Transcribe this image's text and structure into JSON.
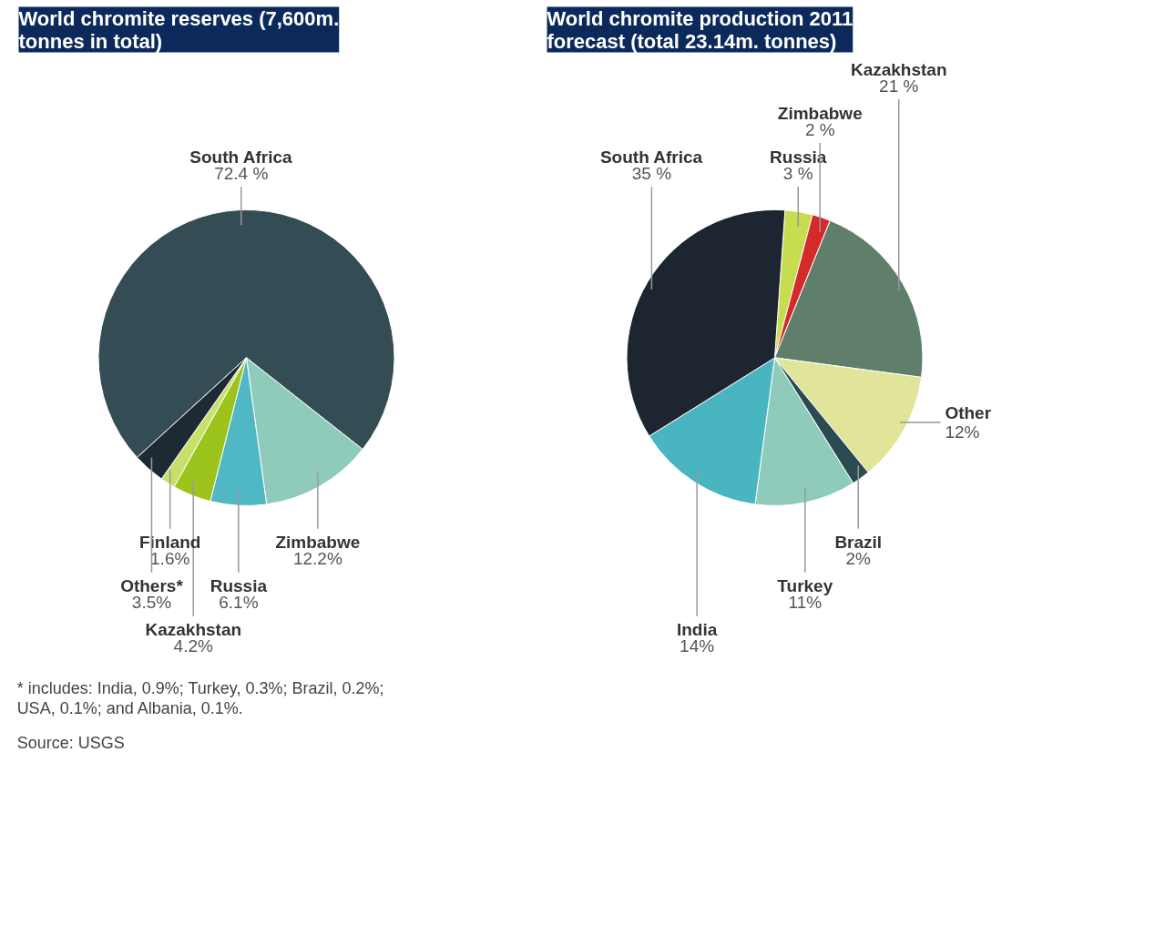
{
  "chart_data": [
    {
      "type": "pie",
      "title": "World chromite reserves (7,600m. tonnes in total)",
      "categories": [
        "South Africa",
        "Zimbabwe",
        "Russia",
        "Kazakhstan",
        "Finland",
        "Others*"
      ],
      "values": [
        72.4,
        12.2,
        6.1,
        4.2,
        1.6,
        3.5
      ],
      "value_labels": [
        "72.4 %",
        "12.2%",
        "6.1%",
        "4.2%",
        "1.6%",
        "3.5%"
      ],
      "colors": [
        "#344c54",
        "#8fcbbb",
        "#4fb8c4",
        "#9dc41c",
        "#c8e06a",
        "#1e2a33"
      ],
      "annotations": [
        "* includes: India, 0.9%; Turkey, 0.3%; Brazil, 0.2%; USA, 0.1%; and Albania, 0.1%.",
        "Source: USGS"
      ]
    },
    {
      "type": "pie",
      "title": "World chromite production 2011 forecast (total 23.14m. tonnes)",
      "categories": [
        "Russia",
        "Zimbabwe",
        "Kazakhstan",
        "Other",
        "Brazil",
        "Turkey",
        "India",
        "South Africa"
      ],
      "values": [
        3,
        2,
        21,
        12,
        2,
        11,
        14,
        35
      ],
      "value_labels": [
        "3 %",
        "2 %",
        "21 %",
        "12%",
        "2%",
        "11%",
        "14%",
        "35 %"
      ],
      "colors": [
        "#c8dc50",
        "#d42a2a",
        "#5f7f6a",
        "#e0e59a",
        "#2c4a52",
        "#8fcbbb",
        "#49b5c0",
        "#1c2530"
      ]
    }
  ]
}
